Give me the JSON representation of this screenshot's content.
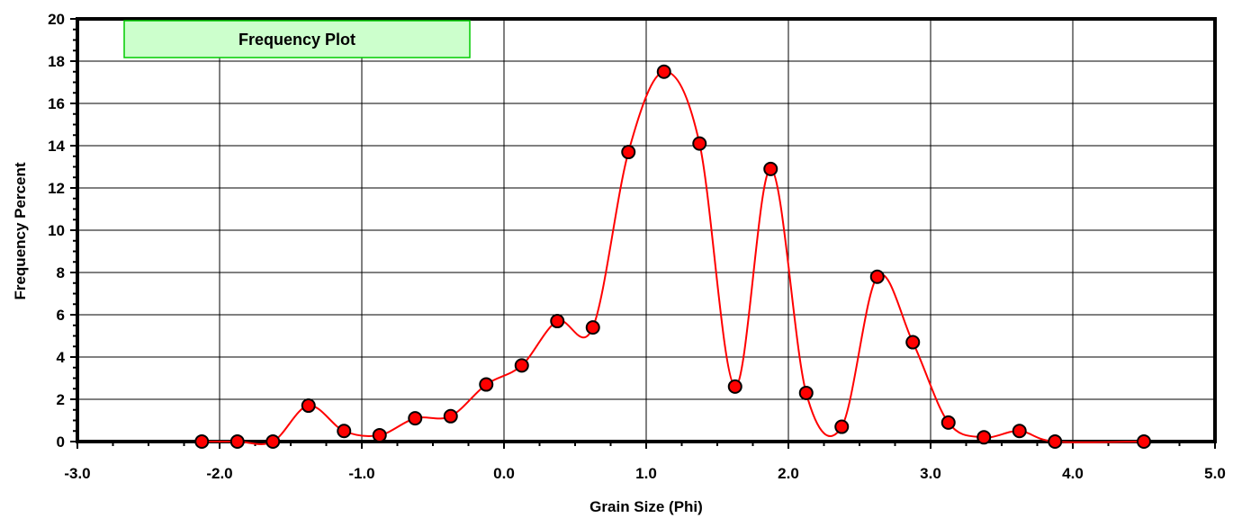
{
  "chart_data": {
    "type": "scatter",
    "title": "Frequency Plot",
    "xlabel": "Grain Size (Phi)",
    "ylabel": "Frequency Percent",
    "xlim": [
      -3.0,
      5.0
    ],
    "ylim": [
      0,
      20
    ],
    "x_ticks": [
      -3.0,
      -2.0,
      -1.0,
      0.0,
      1.0,
      2.0,
      3.0,
      4.0,
      5.0
    ],
    "x_tick_labels": [
      "-3.0",
      "-2.0",
      "-1.0",
      "0.0",
      "1.0",
      "2.0",
      "3.0",
      "4.0",
      "5.0"
    ],
    "y_ticks": [
      0,
      2,
      4,
      6,
      8,
      10,
      12,
      14,
      16,
      18,
      20
    ],
    "y_tick_labels": [
      "0",
      "2",
      "4",
      "6",
      "8",
      "10",
      "12",
      "14",
      "16",
      "18",
      "20"
    ],
    "grid": true,
    "series": [
      {
        "x": [
          -2.125,
          -1.875,
          -1.625,
          -1.375,
          -1.125,
          -0.875,
          -0.625,
          -0.375,
          -0.125,
          0.125,
          0.375,
          0.625,
          0.875,
          1.125,
          1.375,
          1.625,
          1.875,
          2.125,
          2.375,
          2.625,
          2.875,
          3.125,
          3.375,
          3.625,
          3.875,
          4.5
        ],
        "y": [
          0.0,
          0.0,
          0.0,
          1.7,
          0.5,
          0.3,
          1.1,
          1.2,
          2.7,
          3.6,
          5.7,
          5.4,
          13.7,
          17.5,
          14.1,
          2.6,
          12.9,
          2.3,
          0.7,
          7.8,
          4.7,
          0.9,
          0.2,
          0.5,
          0.0,
          0.0
        ],
        "line_color": "#ff0000",
        "marker_color": "#ff0000"
      }
    ],
    "legend": {
      "text": "Frequency Plot",
      "placement": "top-left",
      "bg_color": "#ccffcc",
      "border_color": "#00cc00"
    }
  }
}
